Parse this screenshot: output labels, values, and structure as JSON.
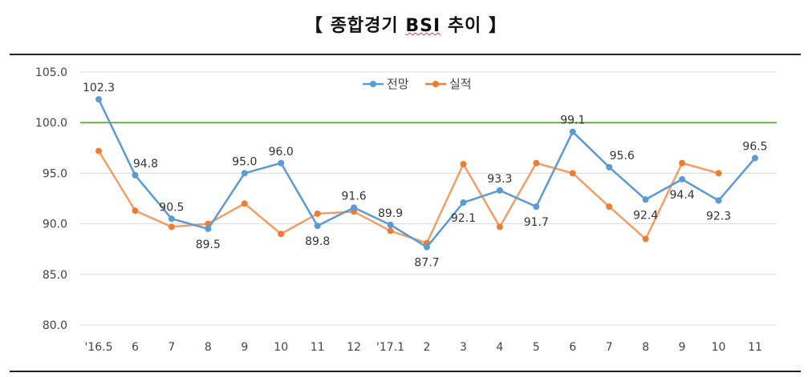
{
  "title": {
    "bracket_left": "【",
    "prefix": "종합경기",
    "bsi": "BSI",
    "suffix": "추이",
    "bracket_right": "】"
  },
  "chart_data": {
    "type": "line",
    "categories": [
      "'16.5",
      "6",
      "7",
      "8",
      "9",
      "10",
      "11",
      "12",
      "'17.1",
      "2",
      "3",
      "4",
      "5",
      "6",
      "7",
      "8",
      "9",
      "10",
      "11"
    ],
    "series": [
      {
        "name": "전망",
        "color": "#5b9bd5",
        "values": [
          102.3,
          94.8,
          90.5,
          89.5,
          95.0,
          96.0,
          89.8,
          91.6,
          89.9,
          87.7,
          92.1,
          93.3,
          91.7,
          99.1,
          95.6,
          92.4,
          94.4,
          92.3,
          96.5
        ],
        "labels": [
          "102.3",
          "94.8",
          "90.5",
          "89.5",
          "95.0",
          "96.0",
          "89.8",
          "91.6",
          "89.9",
          "87.7",
          "92.1",
          "93.3",
          "91.7",
          "99.1",
          "95.6",
          "92.4",
          "94.4",
          "92.3",
          "96.5"
        ]
      },
      {
        "name": "실적",
        "color": "#ed7d31",
        "values": [
          97.2,
          91.3,
          89.7,
          90.0,
          92.0,
          89.0,
          91.0,
          91.2,
          89.3,
          88.1,
          95.9,
          89.7,
          96.0,
          95.0,
          91.7,
          88.5,
          96.0,
          95.0,
          null
        ]
      }
    ],
    "ylim": [
      80,
      105
    ],
    "yticks": [
      "80.0",
      "85.0",
      "90.0",
      "95.0",
      "100.0",
      "105.0"
    ],
    "reference_line": {
      "value": 100,
      "color": "#70ad47"
    },
    "legend_position": "top-center",
    "grid": true
  }
}
